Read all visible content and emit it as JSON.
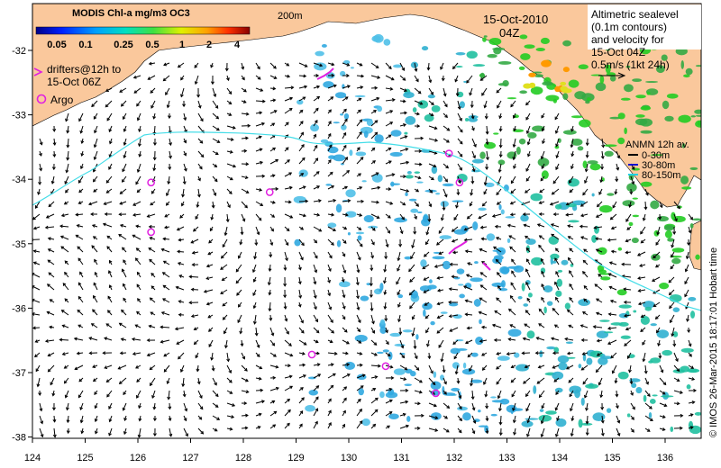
{
  "colorbar": {
    "title": "MODIS Chl-a mg/m3 OC3",
    "ticks": [
      "0.05",
      "0.1",
      "0.25",
      "0.5",
      "1",
      "2",
      "4"
    ]
  },
  "labels": {
    "date": "15-Oct-2010",
    "time": "04Z",
    "contour_200m": "200m",
    "drifters_line1": "drifters@12h to",
    "drifters_line2": "15-Oct 06Z",
    "argo": "Argo",
    "credit": "© IMOS 26-Mar-2015 18:17:01 Hobart time"
  },
  "altimetry_box": {
    "lines": [
      "Altimetric sealevel",
      "(0.1m contours)",
      "and velocity for",
      "15-Oct 04Z",
      "0.5m/s (1kt 24h)"
    ]
  },
  "anmn_legend": {
    "title": "ANMN 12h av.",
    "items": [
      {
        "label": "0-30m",
        "color": "#000000"
      },
      {
        "label": "30-80m",
        "color": "#1010d0"
      },
      {
        "label": "80-150m",
        "color": "#20d0e0"
      }
    ]
  },
  "axes": {
    "x_ticks": [
      "124",
      "125",
      "126",
      "127",
      "128",
      "129",
      "130",
      "131",
      "132",
      "133",
      "134",
      "135",
      "136"
    ],
    "y_ticks": [
      "-32",
      "-33",
      "-34",
      "-35",
      "-36",
      "-37",
      "-38"
    ]
  },
  "argo_floats": [
    {
      "lon": 126.25,
      "lat": -34.05
    },
    {
      "lon": 126.25,
      "lat": -34.82
    },
    {
      "lon": 128.5,
      "lat": -34.2
    },
    {
      "lon": 131.9,
      "lat": -33.6
    },
    {
      "lon": 132.1,
      "lat": -34.05
    },
    {
      "lon": 129.3,
      "lat": -36.72
    },
    {
      "lon": 130.7,
      "lat": -36.9
    },
    {
      "lon": 131.65,
      "lat": -37.32
    }
  ],
  "colors": {
    "land": "#fac89c",
    "argo": "#e020e0",
    "drifter": "#e020e0",
    "contour": "#44dde8"
  }
}
